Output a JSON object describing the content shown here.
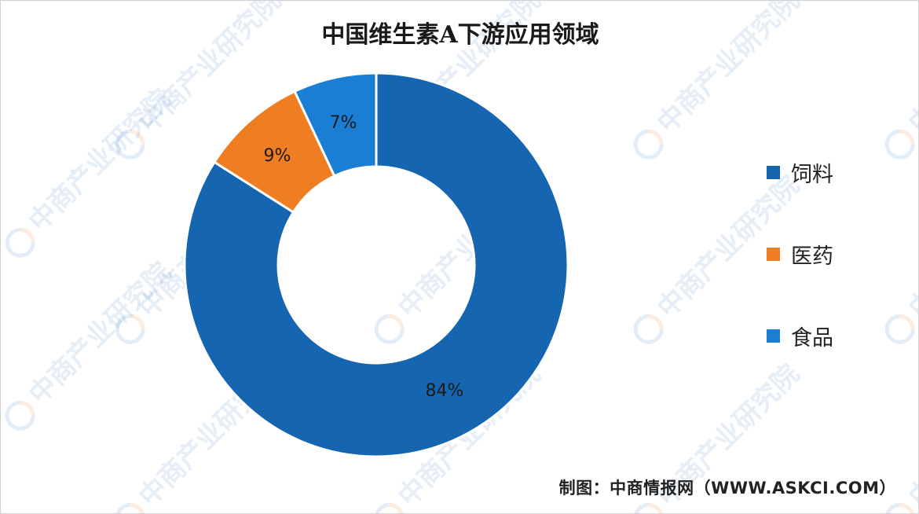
{
  "chart_data": {
    "type": "pie",
    "variant": "donut",
    "title": "中国维生素A下游应用领域",
    "categories": [
      "饲料",
      "医药",
      "食品"
    ],
    "values": [
      84,
      9,
      7
    ],
    "labels": [
      "84%",
      "9%",
      "7%"
    ],
    "colors": [
      "#1565b0",
      "#ef7d22",
      "#1a7fd4"
    ],
    "legend_position": "right"
  },
  "source": "制图：中商情报网（WWW.ASKCI.COM）",
  "watermark": "中商产业研究院"
}
